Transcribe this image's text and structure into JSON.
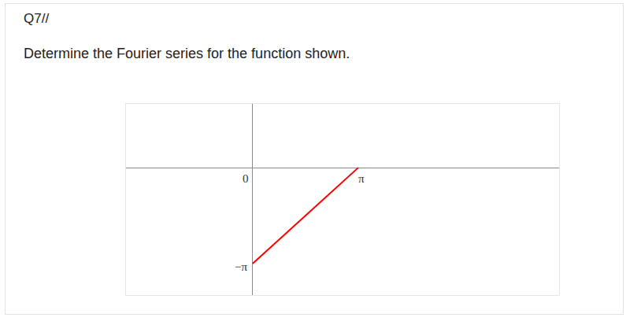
{
  "question": {
    "number": "Q7//",
    "text": "Determine the Fourier series for the function shown."
  },
  "chart_data": {
    "type": "line",
    "x": [
      0,
      3.14159
    ],
    "values": [
      -3.14159,
      0
    ],
    "color": "#ff0000",
    "xlim": [
      -3.77,
      9.12
    ],
    "ylim": [
      -4.17,
      2.09
    ],
    "xticks": [
      {
        "value": 0,
        "label": "0"
      },
      {
        "value": 3.14159,
        "label": "π"
      }
    ],
    "yticks": [
      {
        "value": -3.14159,
        "label": "−π"
      }
    ],
    "grid": false
  }
}
